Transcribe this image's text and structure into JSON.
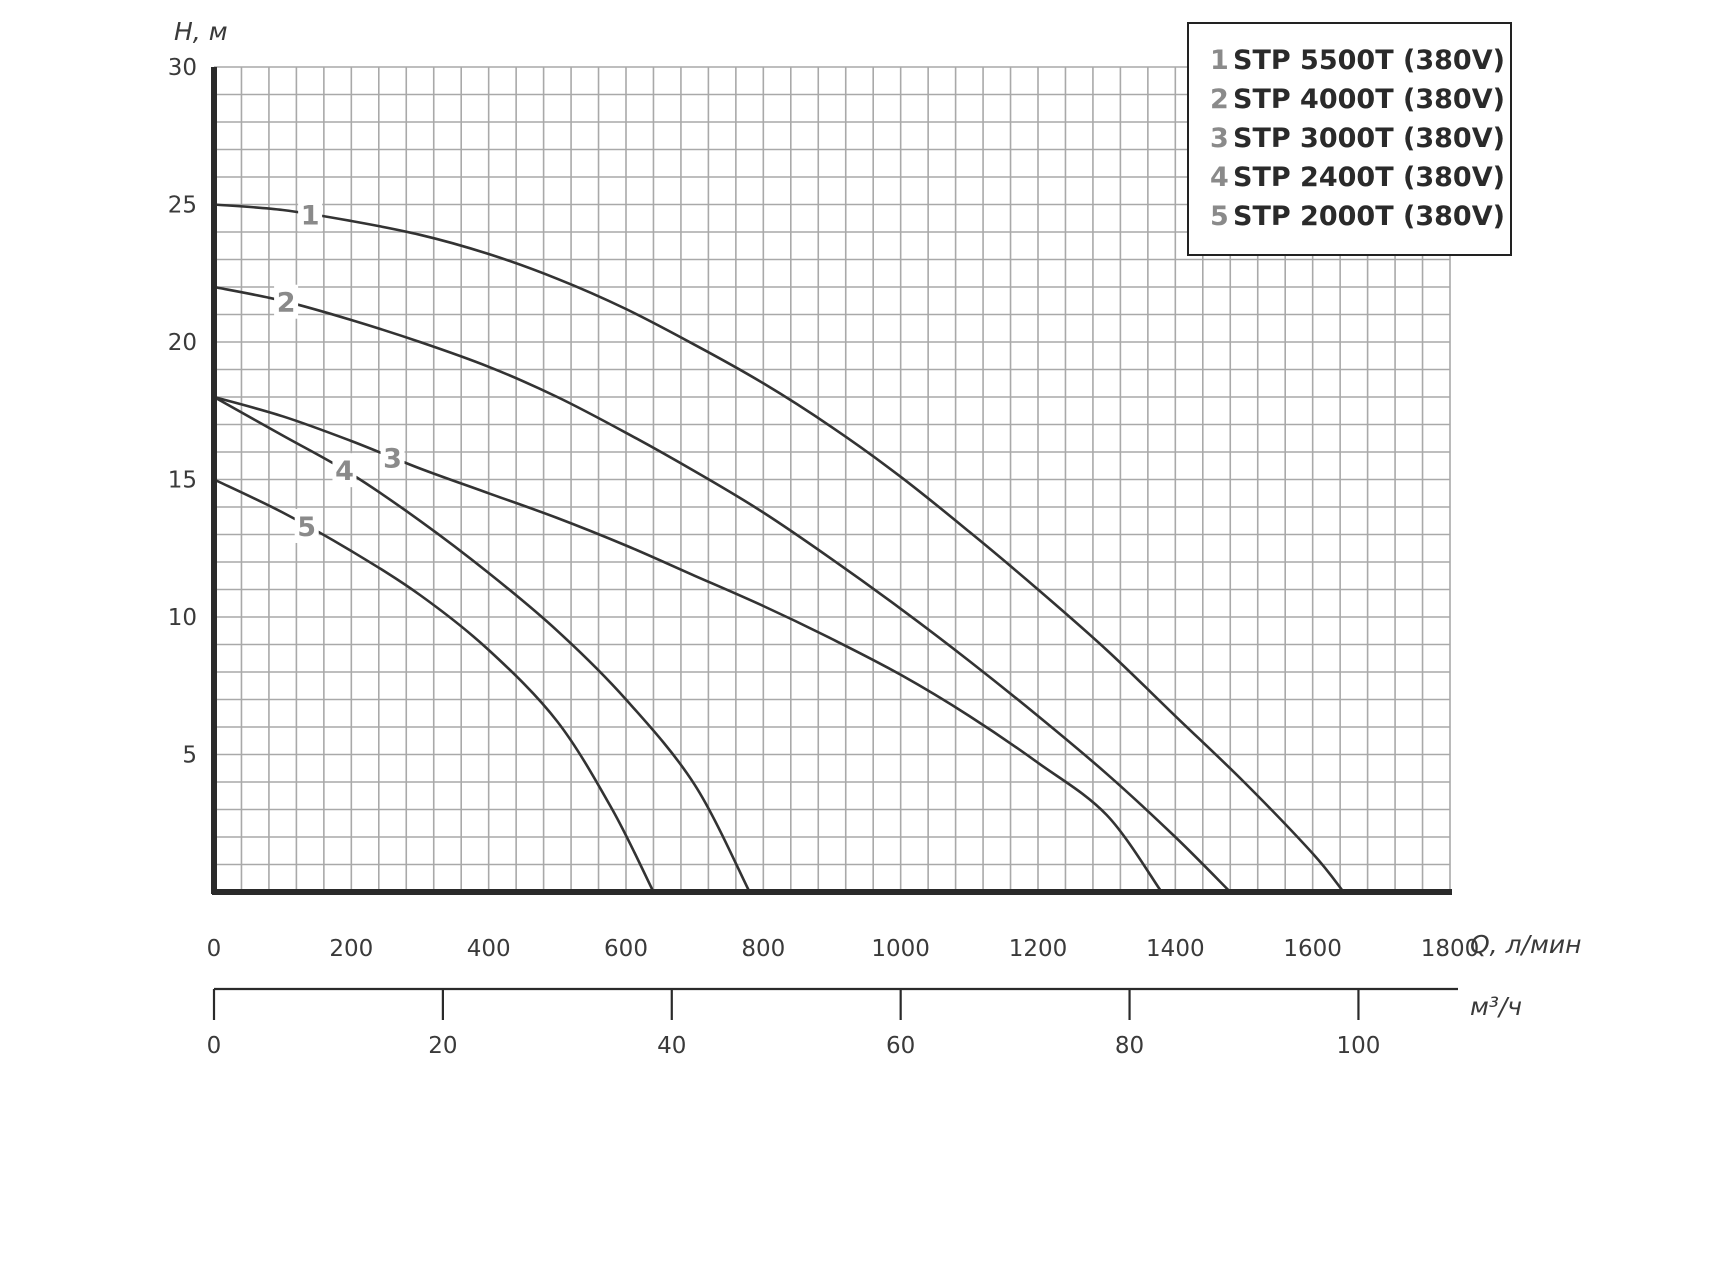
{
  "chart_data": {
    "type": "line",
    "ylabel": "H, м",
    "xlabel": "Q, л/мин",
    "x2label": "м³/ч",
    "xlim": [
      0,
      1800
    ],
    "ylim": [
      0,
      30
    ],
    "grid": true,
    "legend_position": "top-right",
    "y_ticks": [
      "5",
      "10",
      "15",
      "20",
      "25",
      "30"
    ],
    "x_ticks": [
      "0",
      "200",
      "400",
      "600",
      "800",
      "1000",
      "1200",
      "1400",
      "1600",
      "1800"
    ],
    "x2_ticks": [
      "0",
      "20",
      "40",
      "60",
      "80",
      "100"
    ],
    "x2_tick_values": [
      0,
      20,
      40,
      60,
      80,
      100
    ],
    "series": [
      {
        "id": "1",
        "name": "STP 5500T (380V)",
        "label_x": 140,
        "points": [
          [
            0,
            25
          ],
          [
            100,
            24.8
          ],
          [
            200,
            24.4
          ],
          [
            300,
            23.9
          ],
          [
            400,
            23.2
          ],
          [
            500,
            22.3
          ],
          [
            600,
            21.2
          ],
          [
            700,
            19.9
          ],
          [
            800,
            18.5
          ],
          [
            900,
            16.9
          ],
          [
            1000,
            15.1
          ],
          [
            1100,
            13.1
          ],
          [
            1200,
            11
          ],
          [
            1300,
            8.8
          ],
          [
            1400,
            6.4
          ],
          [
            1500,
            4
          ],
          [
            1600,
            1.4
          ],
          [
            1645,
            0
          ]
        ]
      },
      {
        "id": "2",
        "name": "STP 4000T (380V)",
        "label_x": 105,
        "points": [
          [
            0,
            22
          ],
          [
            100,
            21.5
          ],
          [
            200,
            20.8
          ],
          [
            300,
            20
          ],
          [
            400,
            19.1
          ],
          [
            500,
            18
          ],
          [
            600,
            16.7
          ],
          [
            700,
            15.3
          ],
          [
            800,
            13.8
          ],
          [
            900,
            12.1
          ],
          [
            1000,
            10.3
          ],
          [
            1100,
            8.4
          ],
          [
            1200,
            6.4
          ],
          [
            1300,
            4.3
          ],
          [
            1400,
            2
          ],
          [
            1480,
            0
          ]
        ]
      },
      {
        "id": "3",
        "name": "STP 3000T (380V)",
        "label_x": 260,
        "points": [
          [
            0,
            18
          ],
          [
            100,
            17.3
          ],
          [
            200,
            16.4
          ],
          [
            300,
            15.4
          ],
          [
            400,
            14.5
          ],
          [
            500,
            13.6
          ],
          [
            600,
            12.6
          ],
          [
            700,
            11.5
          ],
          [
            800,
            10.4
          ],
          [
            900,
            9.2
          ],
          [
            1000,
            7.9
          ],
          [
            1100,
            6.4
          ],
          [
            1200,
            4.7
          ],
          [
            1300,
            2.8
          ],
          [
            1380,
            0
          ]
        ]
      },
      {
        "id": "4",
        "name": "STP 2400T (380V)",
        "label_x": 190,
        "points": [
          [
            0,
            18
          ],
          [
            100,
            16.6
          ],
          [
            200,
            15.2
          ],
          [
            300,
            13.5
          ],
          [
            400,
            11.6
          ],
          [
            500,
            9.5
          ],
          [
            600,
            7
          ],
          [
            700,
            3.9
          ],
          [
            780,
            0
          ]
        ]
      },
      {
        "id": "5",
        "name": "STP 2000T (380V)",
        "label_x": 135,
        "points": [
          [
            0,
            15
          ],
          [
            100,
            13.8
          ],
          [
            200,
            12.4
          ],
          [
            300,
            10.8
          ],
          [
            400,
            8.8
          ],
          [
            500,
            6.2
          ],
          [
            580,
            3
          ],
          [
            640,
            0
          ]
        ]
      }
    ]
  }
}
